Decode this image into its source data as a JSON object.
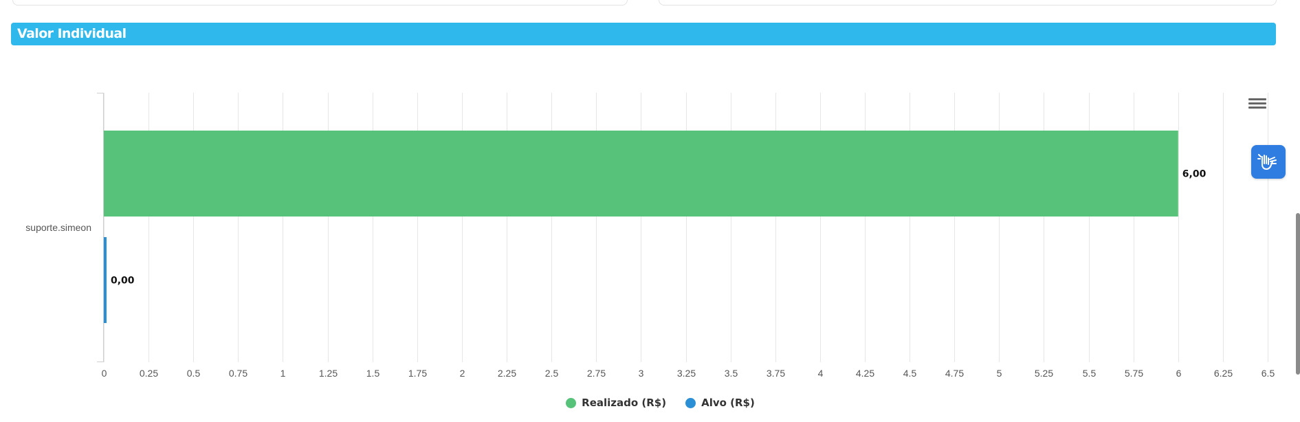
{
  "section": {
    "title": "Valor Individual"
  },
  "colors": {
    "header": "#2eb8ec",
    "realizado": "#57c279",
    "alvo": "#2b8fd6",
    "a11y": "#2f7de1"
  },
  "icons": {
    "menu": "hamburger-menu-icon",
    "accessibility": "sign-language-hands-icon"
  },
  "chart_data": {
    "type": "bar",
    "orientation": "horizontal",
    "categories": [
      "suporte.simeon"
    ],
    "series": [
      {
        "name": "Realizado (R$)",
        "values": [
          6.0
        ],
        "labels": [
          "6,00"
        ],
        "color": "#57c279"
      },
      {
        "name": "Alvo (R$)",
        "values": [
          0.0
        ],
        "labels": [
          "0,00"
        ],
        "color": "#2b8fd6"
      }
    ],
    "xlim": [
      0,
      6.5
    ],
    "ticks": [
      "0",
      "0.25",
      "0.5",
      "0.75",
      "1",
      "1.25",
      "1.5",
      "1.75",
      "2",
      "2.25",
      "2.5",
      "2.75",
      "3",
      "3.25",
      "3.5",
      "3.75",
      "4",
      "4.25",
      "4.5",
      "4.75",
      "5",
      "5.25",
      "5.5",
      "5.75",
      "6",
      "6.25",
      "6.5"
    ],
    "grid": true,
    "legend_position": "bottom"
  },
  "legend": [
    {
      "label": "Realizado (R$)",
      "color": "#57c279"
    },
    {
      "label": "Alvo (R$)",
      "color": "#2b8fd6"
    }
  ]
}
